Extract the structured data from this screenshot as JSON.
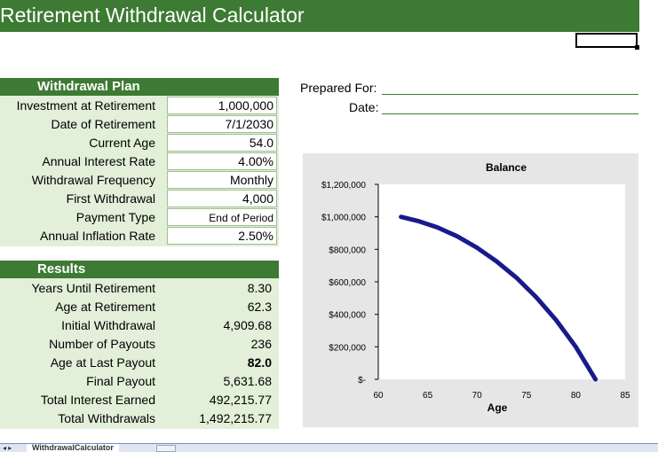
{
  "header": {
    "title": "Retirement Withdrawal Calculator"
  },
  "withdrawal_plan": {
    "heading": "Withdrawal Plan",
    "rows": [
      {
        "label": "Investment at Retirement",
        "value": "1,000,000"
      },
      {
        "label": "Date of Retirement",
        "value": "7/1/2030"
      },
      {
        "label": "Current Age",
        "value": "54.0"
      },
      {
        "label": "Annual Interest Rate",
        "value": "4.00%"
      },
      {
        "label": "Withdrawal Frequency",
        "value": "Monthly"
      },
      {
        "label": "First Withdrawal",
        "value": "4,000"
      },
      {
        "label": "Payment Type",
        "value": "End of Period"
      },
      {
        "label": "Annual Inflation Rate",
        "value": "2.50%"
      }
    ]
  },
  "results": {
    "heading": "Results",
    "rows": [
      {
        "label": "Years Until Retirement",
        "value": "8.30"
      },
      {
        "label": "Age at Retirement",
        "value": "62.3"
      },
      {
        "label": "Initial Withdrawal",
        "value": "4,909.68"
      },
      {
        "label": "Number of Payouts",
        "value": "236"
      },
      {
        "label": "Age at Last Payout",
        "value": "82.0"
      },
      {
        "label": "Final Payout",
        "value": "5,631.68"
      },
      {
        "label": "Total Interest Earned",
        "value": "492,215.77"
      },
      {
        "label": "Total Withdrawals",
        "value": "1,492,215.77"
      }
    ]
  },
  "prepared": {
    "prepared_for_label": "Prepared For:",
    "date_label": "Date:"
  },
  "sheet_tab": {
    "name": "WithdrawalCalculator"
  },
  "colors": {
    "accent": "#3d7a33",
    "panel": "#e2efd9",
    "series": "#1a1a8c",
    "chart_bg": "#e6e6e6"
  },
  "chart_data": {
    "type": "line",
    "title": "Balance",
    "xlabel": "Age",
    "ylabel": "",
    "xlim": [
      60,
      85
    ],
    "ylim": [
      0,
      1200000
    ],
    "x_ticks": [
      "60",
      "65",
      "70",
      "75",
      "80",
      "85"
    ],
    "y_ticks": [
      "$-",
      "$200,000",
      "$400,000",
      "$600,000",
      "$800,000",
      "$1,000,000",
      "$1,200,000"
    ],
    "series": [
      {
        "x": [
          62.3,
          64,
          66,
          68,
          70,
          72,
          74,
          76,
          78,
          80,
          82
        ],
        "values": [
          1000000,
          975000,
          935000,
          880000,
          810000,
          725000,
          625000,
          505000,
          365000,
          200000,
          0
        ]
      }
    ]
  }
}
